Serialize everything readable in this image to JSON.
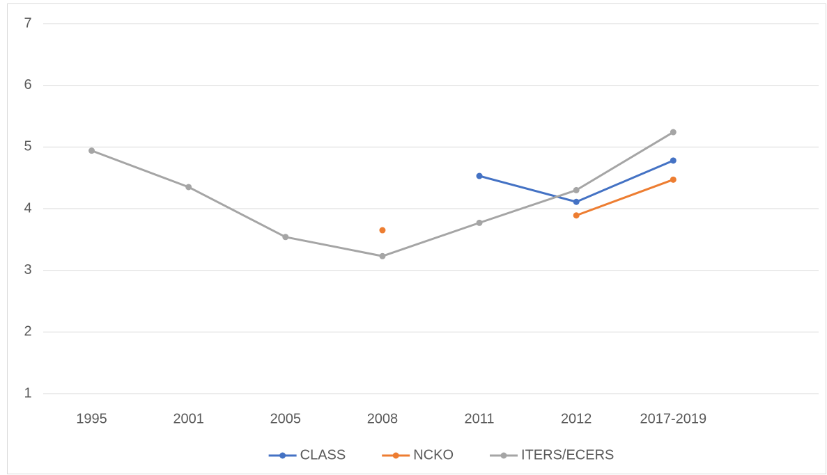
{
  "chart_data": {
    "type": "line",
    "categories": [
      "1995",
      "2001",
      "2005",
      "2008",
      "2011",
      "2012",
      "2017-2019",
      null
    ],
    "series": [
      {
        "name": "CLASS",
        "color": "#4472c4",
        "values": [
          null,
          null,
          null,
          null,
          4.53,
          4.11,
          4.78,
          null
        ]
      },
      {
        "name": "NCKO",
        "color": "#ed7d31",
        "values": [
          null,
          null,
          null,
          3.65,
          null,
          3.89,
          4.47,
          null
        ]
      },
      {
        "name": "ITERS/ECERS",
        "color": "#a5a5a5",
        "values": [
          4.94,
          4.35,
          3.54,
          3.23,
          3.77,
          4.3,
          5.24,
          null
        ]
      }
    ],
    "ylim": [
      1,
      7
    ],
    "yticks": [
      1,
      2,
      3,
      4,
      5,
      6,
      7
    ],
    "grid": true,
    "legend": "bottom"
  }
}
